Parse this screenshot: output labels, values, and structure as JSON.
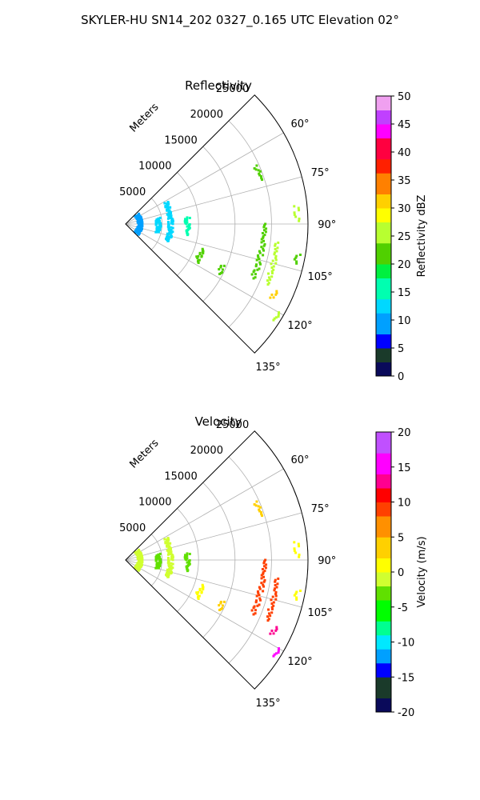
{
  "suptitle": "SKYLER-HU  SN14_202  0327_0.165 UTC Elevation 02°",
  "chart_data": [
    {
      "type": "polar-ppi",
      "title": "Reflectivity",
      "range_label": "Meters",
      "r_ticks": [
        5000,
        10000,
        15000,
        20000,
        25000
      ],
      "r_max": 25000,
      "theta_range_deg": [
        45,
        135
      ],
      "theta_ticks_deg": [
        60,
        75,
        90,
        105,
        120,
        135
      ],
      "grid": true,
      "colorbar": {
        "label": "Reflectivity dBZ",
        "range": [
          0,
          50
        ],
        "ticks": [
          0,
          5,
          10,
          15,
          20,
          25,
          30,
          35,
          40,
          45,
          50
        ],
        "stops": [
          [
            0,
            "#0a0a5a"
          ],
          [
            3,
            "#1a3a2a"
          ],
          [
            5,
            "#0000ff"
          ],
          [
            8,
            "#00a0ff"
          ],
          [
            11,
            "#00d8ff"
          ],
          [
            14,
            "#00ffb0"
          ],
          [
            17,
            "#00f040"
          ],
          [
            20,
            "#50d000"
          ],
          [
            24,
            "#b8ff30"
          ],
          [
            27,
            "#ffff00"
          ],
          [
            30,
            "#ffd000"
          ],
          [
            33,
            "#ff8000"
          ],
          [
            36,
            "#ff2000"
          ],
          [
            39,
            "#ff0040"
          ],
          [
            42,
            "#ff00ff"
          ],
          [
            45,
            "#c040ff"
          ],
          [
            48,
            "#f0a0f0"
          ],
          [
            50,
            "#fff0ff"
          ]
        ]
      },
      "echoes": [
        {
          "r": 2000,
          "az": [
            52,
            130
          ],
          "value": 9
        },
        {
          "r": 4500,
          "az": [
            80,
            105
          ],
          "value": 13
        },
        {
          "r": 6200,
          "az": [
            62,
            112
          ],
          "value": 12
        },
        {
          "r": 8500,
          "az": [
            84,
            100
          ],
          "value": 14
        },
        {
          "r": 11000,
          "az": [
            108,
            118
          ],
          "value": 20
        },
        {
          "r": 14500,
          "az": [
            113,
            118
          ],
          "value": 22
        },
        {
          "r": 19000,
          "az": [
            90,
            113
          ],
          "value": 23
        },
        {
          "r": 19500,
          "az": [
            66,
            72
          ],
          "value": 22
        },
        {
          "r": 21000,
          "az": [
            97,
            113
          ],
          "value": 24
        },
        {
          "r": 22500,
          "az": [
            114,
            117
          ],
          "value": 30
        },
        {
          "r": 23500,
          "az": [
            84,
            89
          ],
          "value": 24
        },
        {
          "r": 24000,
          "az": [
            100,
            103
          ],
          "value": 21
        },
        {
          "r": 24500,
          "az": [
            120,
            123
          ],
          "value": 25
        }
      ]
    },
    {
      "type": "polar-ppi",
      "title": "Velocity",
      "range_label": "Meters",
      "r_ticks": [
        5000,
        10000,
        15000,
        20000,
        25000
      ],
      "r_max": 25000,
      "theta_range_deg": [
        45,
        135
      ],
      "theta_ticks_deg": [
        60,
        75,
        90,
        105,
        120,
        135
      ],
      "grid": true,
      "colorbar": {
        "label": "Velocity (m/s)",
        "range": [
          -20,
          20
        ],
        "ticks": [
          -20,
          -15,
          -10,
          -5,
          0,
          5,
          10,
          15,
          20
        ],
        "stops": [
          [
            -20,
            "#0a0a5a"
          ],
          [
            -17.5,
            "#1a3a2a"
          ],
          [
            -15,
            "#0000ff"
          ],
          [
            -13,
            "#00a0ff"
          ],
          [
            -11,
            "#00e8ff"
          ],
          [
            -9,
            "#00ff90"
          ],
          [
            -7,
            "#00ff00"
          ],
          [
            -4,
            "#60e000"
          ],
          [
            -1.5,
            "#d0ff30"
          ],
          [
            0,
            "#ffff00"
          ],
          [
            2.5,
            "#ffd000"
          ],
          [
            5,
            "#ff9000"
          ],
          [
            8,
            "#ff4000"
          ],
          [
            10,
            "#ff0000"
          ],
          [
            12,
            "#ff0090"
          ],
          [
            14,
            "#ff00ff"
          ],
          [
            17,
            "#c050ff"
          ],
          [
            20,
            "#fff0ff"
          ]
        ]
      },
      "echoes": [
        {
          "r": 2000,
          "az": [
            52,
            130
          ],
          "value": -1
        },
        {
          "r": 4500,
          "az": [
            80,
            105
          ],
          "value": -2
        },
        {
          "r": 6200,
          "az": [
            62,
            112
          ],
          "value": -1
        },
        {
          "r": 8500,
          "az": [
            84,
            100
          ],
          "value": -3
        },
        {
          "r": 11000,
          "az": [
            108,
            118
          ],
          "value": 2
        },
        {
          "r": 14500,
          "az": [
            113,
            118
          ],
          "value": 4
        },
        {
          "r": 19000,
          "az": [
            90,
            113
          ],
          "value": 8
        },
        {
          "r": 19500,
          "az": [
            66,
            72
          ],
          "value": 3
        },
        {
          "r": 21000,
          "az": [
            97,
            113
          ],
          "value": 8
        },
        {
          "r": 22500,
          "az": [
            114,
            117
          ],
          "value": 13
        },
        {
          "r": 23500,
          "az": [
            84,
            89
          ],
          "value": 1
        },
        {
          "r": 24000,
          "az": [
            100,
            103
          ],
          "value": 0
        },
        {
          "r": 24500,
          "az": [
            120,
            123
          ],
          "value": 14
        }
      ]
    }
  ]
}
